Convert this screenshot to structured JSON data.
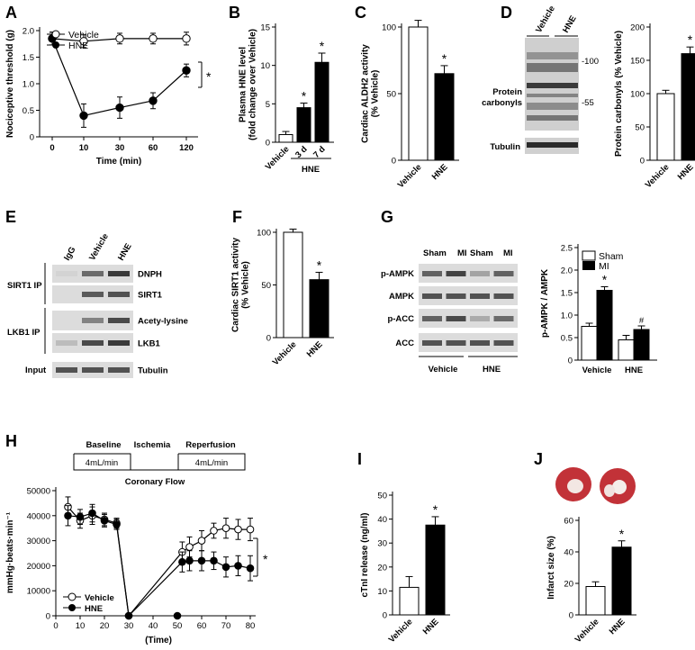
{
  "colors": {
    "filled": "#000000",
    "open": "#ffffff",
    "stroke": "#000000",
    "blot_bg": "#dcdcdc",
    "blot_band": "#3a3a3a",
    "heart_red": "#c23238"
  },
  "panels": {
    "A": {
      "label": "A"
    },
    "B": {
      "label": "B"
    },
    "C": {
      "label": "C"
    },
    "D": {
      "label": "D"
    },
    "E": {
      "label": "E"
    },
    "F": {
      "label": "F"
    },
    "G": {
      "label": "G"
    },
    "H": {
      "label": "H"
    },
    "I": {
      "label": "I"
    },
    "J": {
      "label": "J"
    }
  },
  "sig_star": "*",
  "hash": "#",
  "chart_data": [
    {
      "id": "A",
      "type": "line",
      "ylabel": "Nociceptive threshold (g)",
      "xlabel": "Time (min)",
      "ylim": [
        0,
        2.0
      ],
      "yticks": [
        "0",
        "0.5",
        "1.0",
        "1.5",
        "2.0"
      ],
      "ytick_vals": [
        0,
        0.5,
        1.0,
        1.5,
        2.0
      ],
      "xticks": [
        "0",
        "10",
        "30",
        "60",
        "120"
      ],
      "series": [
        {
          "name": "Vehicle",
          "marker": "open",
          "values": [
            1.85,
            1.8,
            1.85,
            1.85,
            1.85
          ],
          "err": [
            0.12,
            0.12,
            0.1,
            0.1,
            0.12
          ]
        },
        {
          "name": "HNE",
          "marker": "filled",
          "values": [
            1.85,
            0.4,
            0.55,
            0.68,
            1.25
          ],
          "err": [
            0.12,
            0.22,
            0.2,
            0.15,
            0.12
          ]
        }
      ]
    },
    {
      "id": "B",
      "type": "bar",
      "ylabel": "Plasma HNE level\n(fold change over Vehicle)",
      "ylim": [
        0,
        15
      ],
      "yticks": [
        "0",
        "5",
        "10",
        "15"
      ],
      "ytick_vals": [
        0,
        5,
        10,
        15
      ],
      "categories": [
        "Vehicle",
        "3 d",
        "7 d"
      ],
      "group_label": "HNE",
      "values": [
        1.0,
        4.5,
        10.4
      ],
      "err": [
        0.4,
        0.6,
        1.2
      ],
      "fills": [
        "open",
        "filled",
        "filled"
      ],
      "stars": [
        false,
        true,
        true
      ]
    },
    {
      "id": "C",
      "type": "bar",
      "ylabel": "Cardiac ALDH2 activity\n(% Vehicle)",
      "ylim": [
        0,
        100
      ],
      "yticks": [
        "0",
        "50",
        "100"
      ],
      "ytick_vals": [
        0,
        50,
        100
      ],
      "categories": [
        "Vehicle",
        "HNE"
      ],
      "values": [
        100,
        65
      ],
      "err": [
        5,
        6
      ],
      "fills": [
        "open",
        "filled"
      ],
      "stars": [
        false,
        true
      ]
    },
    {
      "id": "D",
      "type": "bar",
      "ylabel": "Protein carbonyls (% Vehicle)",
      "ylim": [
        0,
        200
      ],
      "yticks": [
        "0",
        "50",
        "100",
        "150",
        "200"
      ],
      "ytick_vals": [
        0,
        50,
        100,
        150,
        200
      ],
      "categories": [
        "Vehicle",
        "HNE"
      ],
      "values": [
        100,
        160
      ],
      "err": [
        5,
        10
      ],
      "fills": [
        "open",
        "filled"
      ],
      "stars": [
        false,
        true
      ]
    },
    {
      "id": "F",
      "type": "bar",
      "ylabel": "Cardiac SIRT1 activity\n(% Vehicle)",
      "ylim": [
        0,
        100
      ],
      "yticks": [
        "0",
        "50",
        "100"
      ],
      "ytick_vals": [
        0,
        50,
        100
      ],
      "categories": [
        "Vehicle",
        "HNE"
      ],
      "values": [
        100,
        55
      ],
      "err": [
        3,
        7
      ],
      "fills": [
        "open",
        "filled"
      ],
      "stars": [
        false,
        true
      ]
    },
    {
      "id": "G",
      "type": "bar",
      "ylabel": "p-AMPK / AMPK",
      "ylim": [
        0,
        2.5
      ],
      "yticks": [
        "0",
        "0.5",
        "1.0",
        "1.5",
        "2.0",
        "2.5"
      ],
      "ytick_vals": [
        0,
        0.5,
        1.0,
        1.5,
        2.0,
        2.5
      ],
      "groups": [
        "Vehicle",
        "HNE"
      ],
      "series": [
        {
          "name": "Sham",
          "fill": "open",
          "values": [
            0.75,
            0.45
          ],
          "err": [
            0.07,
            0.1
          ]
        },
        {
          "name": "MI",
          "fill": "filled",
          "values": [
            1.55,
            0.68
          ],
          "err": [
            0.08,
            0.08
          ]
        }
      ],
      "marks": [
        {
          "series": 1,
          "group": 0,
          "mark": "*"
        },
        {
          "series": 1,
          "group": 1,
          "mark": "#"
        }
      ]
    },
    {
      "id": "H",
      "type": "line",
      "ylabel": "mmHg·beats·min⁻¹",
      "xlabel": "(Time)",
      "ylim": [
        0,
        50000
      ],
      "yticks": [
        "0",
        "10000",
        "20000",
        "30000",
        "40000",
        "50000"
      ],
      "ytick_vals": [
        0,
        10000,
        20000,
        30000,
        40000,
        50000
      ],
      "xlim": [
        0,
        80
      ],
      "xticks": [
        "0",
        "10",
        "20",
        "30",
        "40",
        "50",
        "60",
        "70",
        "80"
      ],
      "xtick_vals": [
        0,
        10,
        20,
        30,
        40,
        50,
        60,
        70,
        80
      ],
      "series": [
        {
          "name": "Vehicle",
          "marker": "open",
          "x": [
            5,
            10,
            15,
            20,
            25,
            30,
            52,
            55,
            60,
            65,
            70,
            75,
            80
          ],
          "values": [
            43500,
            38000,
            40000,
            38500,
            37000,
            0,
            25500,
            27500,
            30000,
            34000,
            35000,
            34500,
            34500
          ],
          "err": [
            4000,
            3000,
            3500,
            2500,
            2000,
            0,
            4000,
            4000,
            4000,
            3000,
            4000,
            4000,
            4500
          ]
        },
        {
          "name": "HNE",
          "marker": "filled",
          "x": [
            5,
            10,
            15,
            20,
            25,
            30,
            52,
            55,
            60,
            65,
            70,
            75,
            80
          ],
          "values": [
            40000,
            39500,
            41000,
            38000,
            36500,
            0,
            21500,
            22000,
            22000,
            22000,
            19500,
            20000,
            19000
          ],
          "err": [
            4000,
            3000,
            3500,
            2500,
            2000,
            0,
            4000,
            4000,
            4000,
            3500,
            4000,
            4000,
            5000
          ]
        }
      ],
      "protocol": {
        "baseline": "Baseline",
        "ischemia": "Ischemia",
        "reperfusion": "Reperfusion",
        "flow1": "4mL/min",
        "flow2": "4mL/min",
        "caption": "Coronary Flow"
      }
    },
    {
      "id": "I",
      "type": "bar",
      "ylabel": "cTnI release (ng/ml)",
      "ylim": [
        0,
        50
      ],
      "yticks": [
        "0",
        "10",
        "20",
        "30",
        "40",
        "50"
      ],
      "ytick_vals": [
        0,
        10,
        20,
        30,
        40,
        50
      ],
      "categories": [
        "Vehicle",
        "HNE"
      ],
      "values": [
        11.5,
        37.5
      ],
      "err": [
        4.5,
        3.5
      ],
      "fills": [
        "open",
        "filled"
      ],
      "stars": [
        false,
        true
      ]
    },
    {
      "id": "J",
      "type": "bar",
      "ylabel": "Infarct size (%)",
      "ylim": [
        0,
        60
      ],
      "yticks": [
        "0",
        "20",
        "40",
        "60"
      ],
      "ytick_vals": [
        0,
        20,
        40,
        60
      ],
      "categories": [
        "Vehicle",
        "HNE"
      ],
      "values": [
        18,
        43
      ],
      "err": [
        3,
        4
      ],
      "fills": [
        "open",
        "filled"
      ],
      "stars": [
        false,
        true
      ]
    }
  ],
  "blots": {
    "D": {
      "header": [
        "Vehicle",
        "HNE"
      ],
      "main": "Protein carbonyls",
      "mw_top": "-100",
      "mw_mid": "-55",
      "lower": "Tubulin"
    },
    "E": {
      "header": [
        "IgG",
        "Vehicle",
        "HNE"
      ],
      "ip1": "SIRT1 IP",
      "ip2": "LKB1 IP",
      "input": "Input",
      "rows": [
        "DNPH",
        "SIRT1",
        "Acety-lysine",
        "LKB1",
        "Tubulin"
      ]
    },
    "G": {
      "header": [
        "Sham",
        "MI",
        "Sham",
        "MI"
      ],
      "rows": [
        "p-AMPK",
        "AMPK",
        "p-ACC",
        "ACC"
      ],
      "groups": [
        "Vehicle",
        "HNE"
      ]
    }
  }
}
